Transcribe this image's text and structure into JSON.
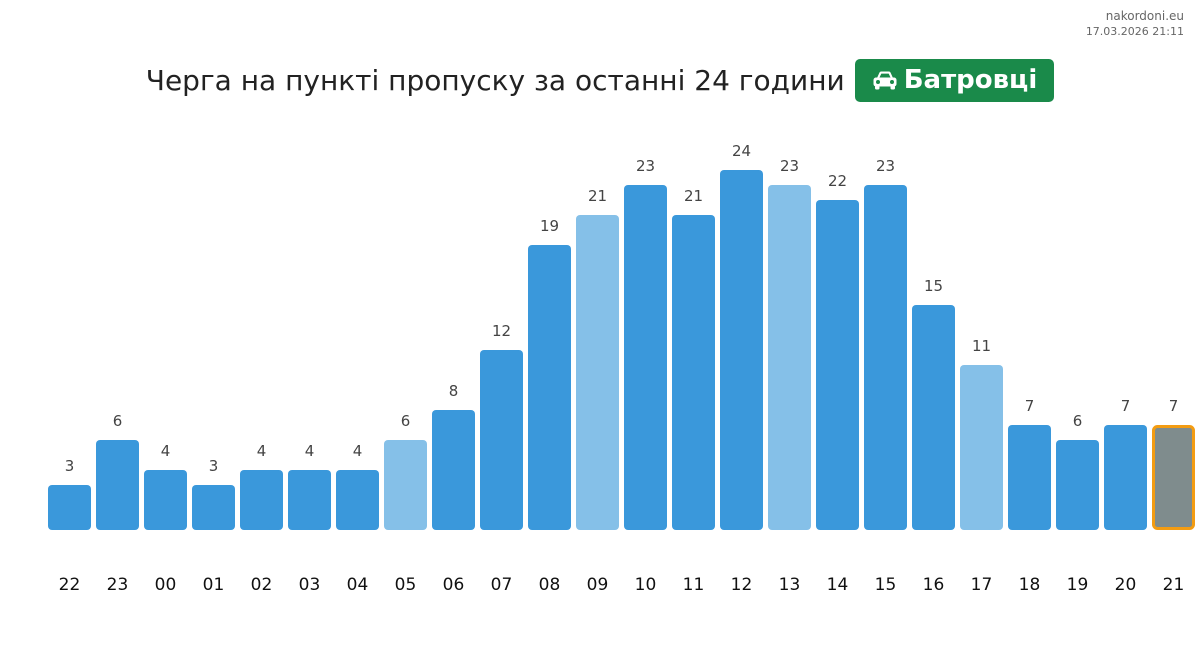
{
  "site": "nakordoni.eu",
  "timestamp": "17.03.2026 21:11",
  "header": {
    "title": "Черга на пункті пропуску за останні 24 години",
    "checkpoint": "Батровці",
    "checkpoint_icon": "car-icon",
    "badge_color": "#1a8a4a"
  },
  "colors": {
    "bar": "#3a98db",
    "bar_light": "#85c0e8",
    "bar_current": "#7f8c8d",
    "bar_current_border": "#f39c12",
    "value_label": "#444444",
    "hour_label": "#111111"
  },
  "chart_data": {
    "type": "bar",
    "title": "Черга на пункті пропуску за останні 24 години",
    "xlabel": "",
    "ylabel": "",
    "ylim": [
      0,
      24
    ],
    "grid": false,
    "categories": [
      "22",
      "23",
      "00",
      "01",
      "02",
      "03",
      "04",
      "05",
      "06",
      "07",
      "08",
      "09",
      "10",
      "11",
      "12",
      "13",
      "14",
      "15",
      "16",
      "17",
      "18",
      "19",
      "20",
      "21"
    ],
    "values": [
      3,
      6,
      4,
      3,
      4,
      4,
      4,
      6,
      8,
      12,
      19,
      21,
      23,
      21,
      24,
      23,
      22,
      23,
      15,
      11,
      7,
      6,
      7,
      7
    ],
    "light_bar_hours": [
      "05",
      "09",
      "13",
      "17"
    ],
    "current_hour": "21"
  }
}
